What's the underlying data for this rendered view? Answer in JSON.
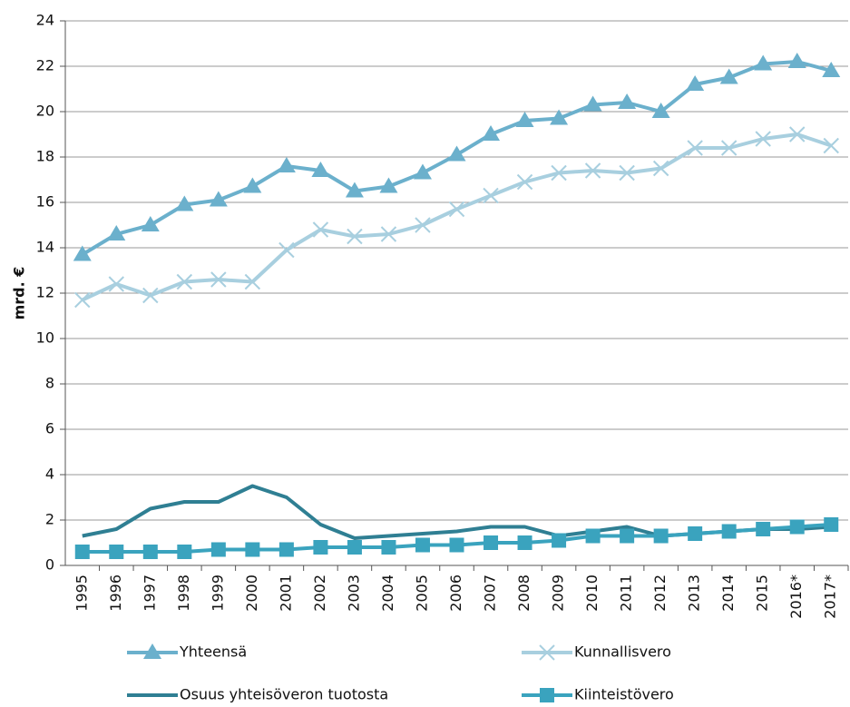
{
  "chart_data": {
    "type": "line",
    "ylabel": "mrd. €",
    "categories": [
      "1995",
      "1996",
      "1997",
      "1998",
      "1999",
      "2000",
      "2001",
      "2002",
      "2003",
      "2004",
      "2005",
      "2006",
      "2007",
      "2008",
      "2009",
      "2010",
      "2011",
      "2012",
      "2013",
      "2014",
      "2015",
      "2016*",
      "2017*"
    ],
    "series": [
      {
        "name": "Yhteensä",
        "color": "#6bb0cc",
        "marker": "triangle",
        "values": [
          13.7,
          14.6,
          15.0,
          15.9,
          16.1,
          16.7,
          17.6,
          17.4,
          16.5,
          16.7,
          17.3,
          18.1,
          19.0,
          19.6,
          19.7,
          20.3,
          20.4,
          20.0,
          21.2,
          21.5,
          22.1,
          22.2,
          21.8
        ]
      },
      {
        "name": "Kunnallisvero",
        "color": "#a8cfdf",
        "marker": "x",
        "values": [
          11.7,
          12.4,
          11.9,
          12.5,
          12.6,
          12.5,
          13.9,
          14.8,
          14.5,
          14.6,
          15.0,
          15.7,
          16.3,
          16.9,
          17.3,
          17.4,
          17.3,
          17.5,
          18.4,
          18.4,
          18.8,
          19.0,
          18.5
        ]
      },
      {
        "name": "Osuus yhteisöveron tuotosta",
        "color": "#2f7f93",
        "marker": "none",
        "values": [
          1.3,
          1.6,
          2.5,
          2.8,
          2.8,
          3.5,
          3.0,
          1.8,
          1.2,
          1.3,
          1.4,
          1.5,
          1.7,
          1.7,
          1.3,
          1.5,
          1.7,
          1.3,
          1.4,
          1.5,
          1.6,
          1.6,
          1.7
        ]
      },
      {
        "name": "Kiinteistövero",
        "color": "#3aa3be",
        "marker": "square",
        "values": [
          0.6,
          0.6,
          0.6,
          0.6,
          0.7,
          0.7,
          0.7,
          0.8,
          0.8,
          0.8,
          0.9,
          0.9,
          1.0,
          1.0,
          1.1,
          1.3,
          1.3,
          1.3,
          1.4,
          1.5,
          1.6,
          1.7,
          1.8
        ]
      }
    ],
    "ylim": [
      0,
      24
    ],
    "yticks": [
      0,
      2,
      4,
      6,
      8,
      10,
      12,
      14,
      16,
      18,
      20,
      22,
      24
    ],
    "grid": true,
    "legend": "bottom"
  }
}
